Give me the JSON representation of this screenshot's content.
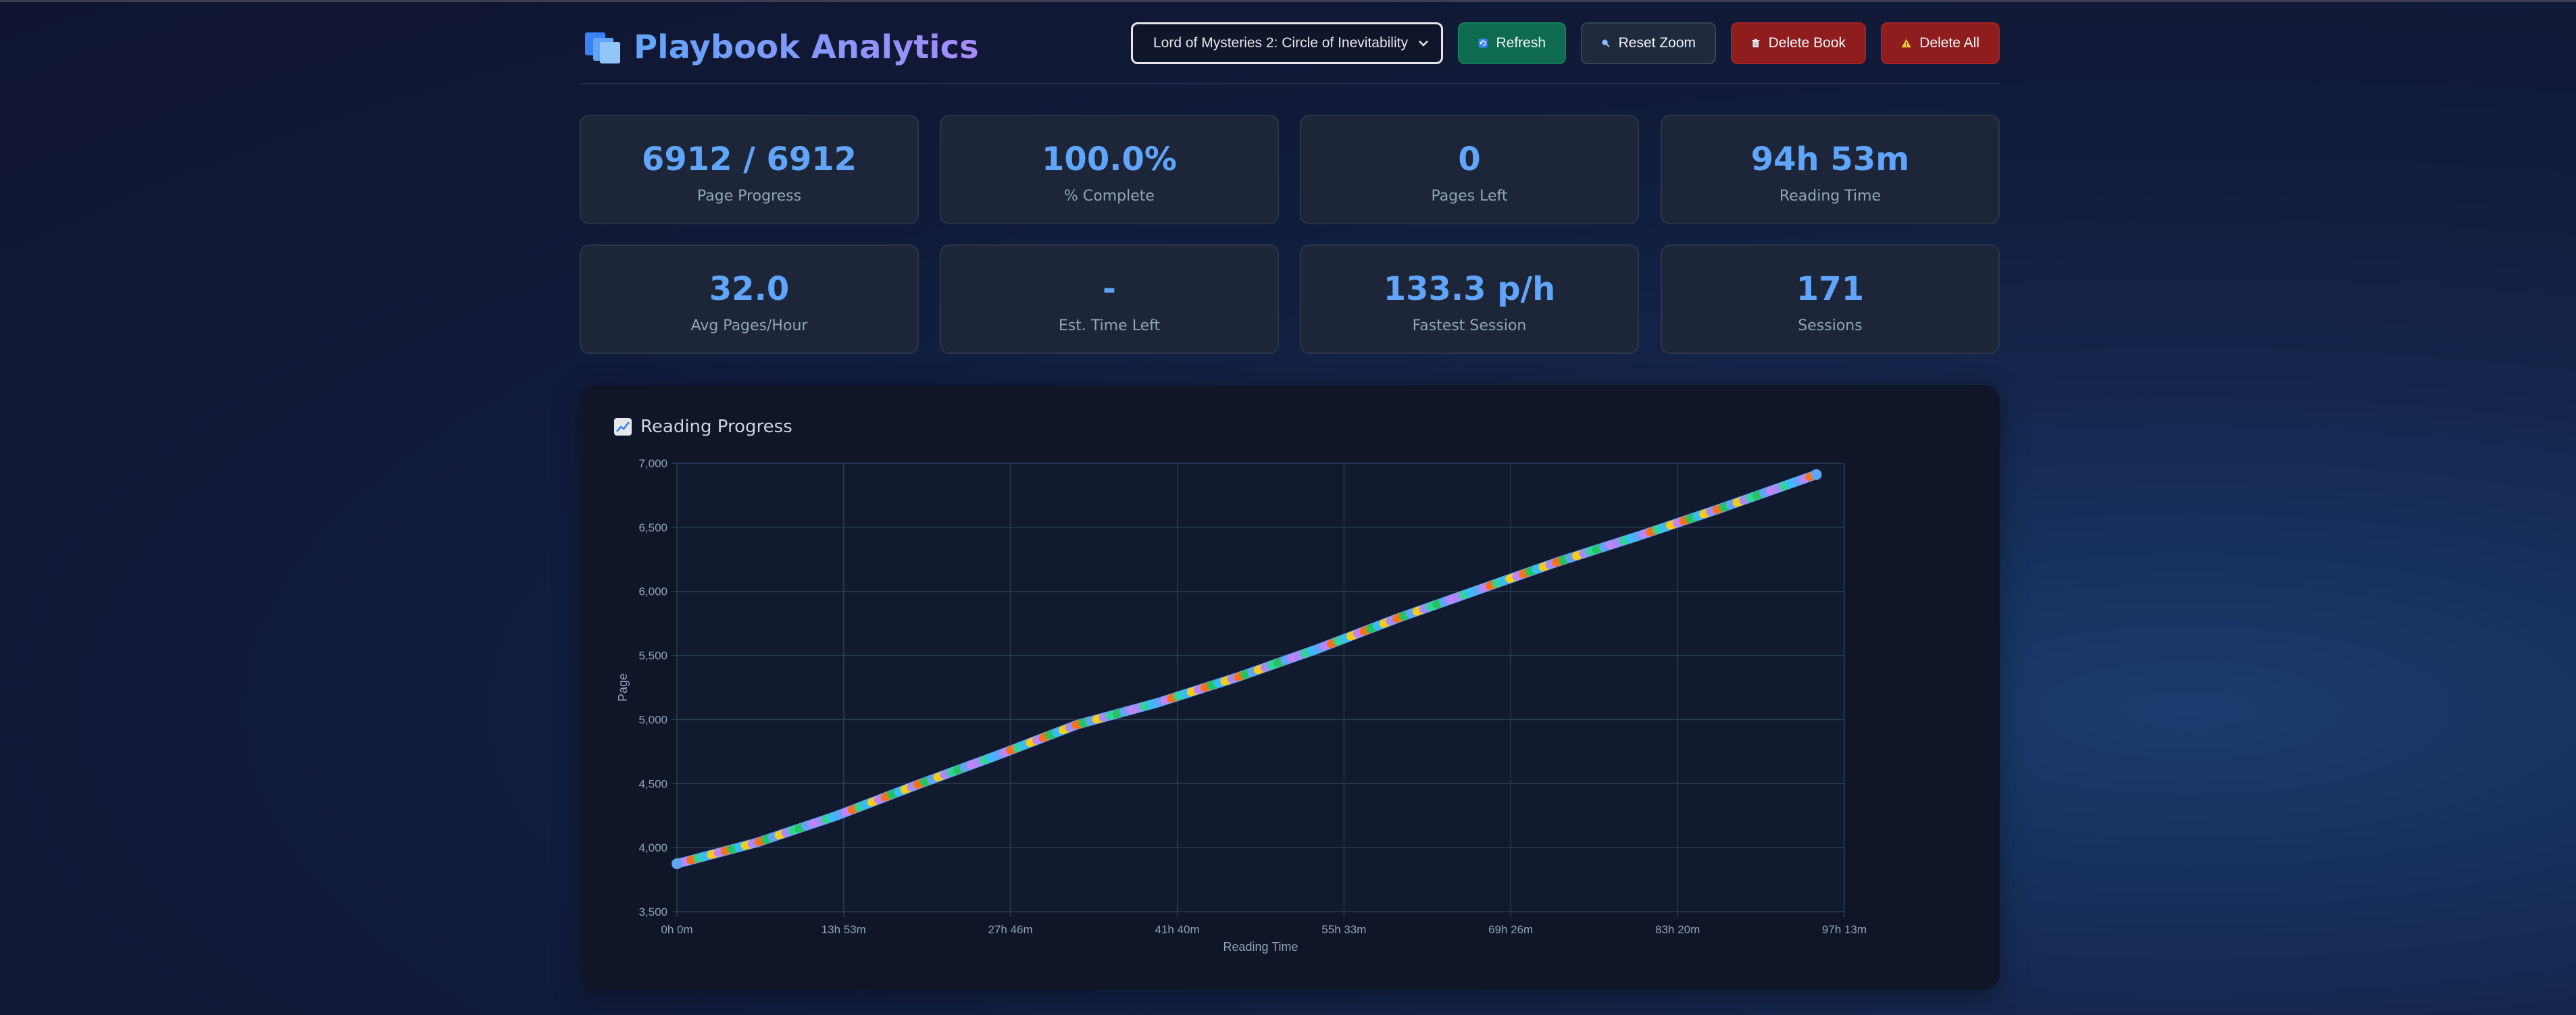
{
  "header": {
    "title": "Playbook Analytics",
    "logo_icon": "book-stack-icon",
    "book_select": {
      "selected": "Lord of Mysteries 2: Circle of Inevitability"
    },
    "buttons": {
      "refresh": {
        "label": "Refresh",
        "icon": "refresh-icon"
      },
      "reset_zoom": {
        "label": "Reset Zoom",
        "icon": "magnifier-icon"
      },
      "delete_book": {
        "label": "Delete Book",
        "icon": "trash-icon"
      },
      "delete_all": {
        "label": "Delete All",
        "icon": "warning-icon"
      }
    }
  },
  "stats": [
    {
      "value": "6912 / 6912",
      "label": "Page Progress"
    },
    {
      "value": "100.0%",
      "label": "% Complete"
    },
    {
      "value": "0",
      "label": "Pages Left"
    },
    {
      "value": "94h 53m",
      "label": "Reading Time"
    },
    {
      "value": "32.0",
      "label": "Avg Pages/Hour"
    },
    {
      "value": "-",
      "label": "Est. Time Left"
    },
    {
      "value": "133.3 p/h",
      "label": "Fastest Session"
    },
    {
      "value": "171",
      "label": "Sessions"
    }
  ],
  "panel": {
    "title": "Reading Progress",
    "icon": "chart-icon"
  },
  "colors": {
    "accent": "#60a5fa",
    "title_gradient": [
      "#60a5fa",
      "#a78bfa"
    ],
    "session_palette": [
      "#60a5fa",
      "#a78bfa",
      "#22c55e",
      "#facc15",
      "#f97316",
      "#38bdf8",
      "#c084fc",
      "#34d399"
    ]
  },
  "chart_data": {
    "type": "line",
    "xlabel": "Reading Time",
    "ylabel": "Page",
    "x_unit": "minutes",
    "xlim": [
      0,
      5833
    ],
    "ylim": [
      3500,
      7000
    ],
    "x_tick_values": [
      0,
      833,
      1666,
      2500,
      3333,
      4166,
      5000,
      5833
    ],
    "x_tick_labels": [
      "0h 0m",
      "13h 53m",
      "27h 46m",
      "41h 40m",
      "55h 33m",
      "69h 26m",
      "83h 20m",
      "97h 13m"
    ],
    "y_tick_values": [
      3500,
      4000,
      4500,
      5000,
      5500,
      6000,
      6500,
      7000
    ],
    "y_tick_labels": [
      "3,500",
      "4,000",
      "4,500",
      "5,000",
      "5,500",
      "6,000",
      "6,500",
      "7,000"
    ],
    "grid": true,
    "legend": "none",
    "sessions": 171,
    "series": [
      {
        "x": [
          0,
          400,
          800,
          1200,
          1600,
          2000,
          2400,
          2800,
          3200,
          3600,
          4000,
          4400,
          4800,
          5200,
          5693
        ],
        "y": [
          3874,
          4040,
          4250,
          4490,
          4720,
          4960,
          5130,
          5330,
          5550,
          5790,
          6010,
          6230,
          6430,
          6640,
          6912
        ]
      }
    ]
  }
}
